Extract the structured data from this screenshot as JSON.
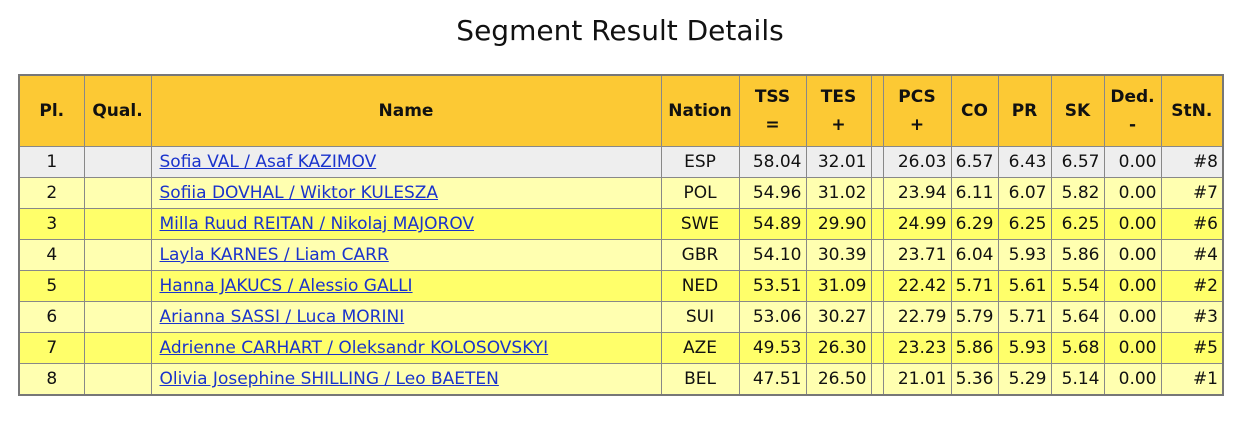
{
  "header": {
    "title": "Segment Result Details"
  },
  "table": {
    "columns": [
      {
        "text": "Pl."
      },
      {
        "text": "Qual."
      },
      {
        "text": "Name"
      },
      {
        "text": "Nation"
      },
      {
        "text": "TSS",
        "sign": "="
      },
      {
        "text": "TES",
        "sign": "+"
      },
      {
        "text": "PCS",
        "sign": "+"
      },
      {
        "text": "CO"
      },
      {
        "text": "PR"
      },
      {
        "text": "SK"
      },
      {
        "text": "Ded.",
        "sign": "-"
      },
      {
        "text": "StN."
      }
    ],
    "rows": [
      {
        "place": "1",
        "name": "Sofia VAL / Asaf KAZIMOV",
        "nation": "ESP",
        "tss": "58.04",
        "tes": "32.01",
        "pcs": "26.03",
        "co": "6.57",
        "pr": "6.43",
        "sk": "6.57",
        "ded": "0.00",
        "stn": "#8"
      },
      {
        "place": "2",
        "name": "Sofiia DOVHAL / Wiktor KULESZA",
        "nation": "POL",
        "tss": "54.96",
        "tes": "31.02",
        "pcs": "23.94",
        "co": "6.11",
        "pr": "6.07",
        "sk": "5.82",
        "ded": "0.00",
        "stn": "#7"
      },
      {
        "place": "3",
        "name": "Milla Ruud REITAN / Nikolaj MAJOROV",
        "nation": "SWE",
        "tss": "54.89",
        "tes": "29.90",
        "pcs": "24.99",
        "co": "6.29",
        "pr": "6.25",
        "sk": "6.25",
        "ded": "0.00",
        "stn": "#6"
      },
      {
        "place": "4",
        "name": "Layla KARNES / Liam CARR",
        "nation": "GBR",
        "tss": "54.10",
        "tes": "30.39",
        "pcs": "23.71",
        "co": "6.04",
        "pr": "5.93",
        "sk": "5.86",
        "ded": "0.00",
        "stn": "#4"
      },
      {
        "place": "5",
        "name": "Hanna JAKUCS / Alessio GALLI",
        "nation": "NED",
        "tss": "53.51",
        "tes": "31.09",
        "pcs": "22.42",
        "co": "5.71",
        "pr": "5.61",
        "sk": "5.54",
        "ded": "0.00",
        "stn": "#2"
      },
      {
        "place": "6",
        "name": "Arianna SASSI / Luca MORINI",
        "nation": "SUI",
        "tss": "53.06",
        "tes": "30.27",
        "pcs": "22.79",
        "co": "5.79",
        "pr": "5.71",
        "sk": "5.64",
        "ded": "0.00",
        "stn": "#3"
      },
      {
        "place": "7",
        "name": "Adrienne CARHART / Oleksandr KOLOSOVSKYI",
        "nation": "AZE",
        "tss": "49.53",
        "tes": "26.30",
        "pcs": "23.23",
        "co": "5.86",
        "pr": "5.93",
        "sk": "5.68",
        "ded": "0.00",
        "stn": "#5"
      },
      {
        "place": "8",
        "name": "Olivia Josephine SHILLING / Leo BAETEN",
        "nation": "BEL",
        "tss": "47.51",
        "tes": "26.50",
        "pcs": "21.01",
        "co": "5.36",
        "pr": "5.29",
        "sk": "5.14",
        "ded": "0.00",
        "stn": "#1"
      }
    ]
  }
}
